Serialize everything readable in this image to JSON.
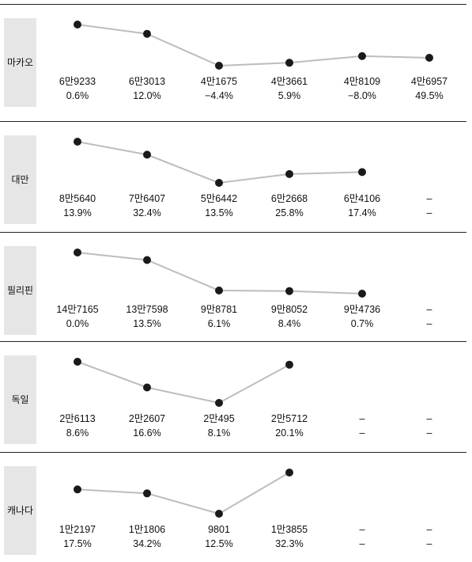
{
  "chart_data": [
    {
      "type": "line",
      "title": "마카오",
      "values": [
        69233,
        63013,
        41675,
        43661,
        48109,
        46957
      ],
      "value_labels": [
        "6만9233",
        "6만3013",
        "4만1675",
        "4만3661",
        "4만8109",
        "4만6957"
      ],
      "change_labels": [
        "0.6%",
        "12.0%",
        "−4.4%",
        "5.9%",
        "−8.0%",
        "49.5%"
      ]
    },
    {
      "type": "line",
      "title": "대만",
      "values": [
        85640,
        76407,
        56442,
        62668,
        64106,
        null
      ],
      "value_labels": [
        "8만5640",
        "7만6407",
        "5만6442",
        "6만2668",
        "6만4106",
        "–"
      ],
      "change_labels": [
        "13.9%",
        "32.4%",
        "13.5%",
        "25.8%",
        "17.4%",
        "–"
      ]
    },
    {
      "type": "line",
      "title": "필리핀",
      "values": [
        147165,
        137598,
        98781,
        98052,
        94736,
        null
      ],
      "value_labels": [
        "14만7165",
        "13만7598",
        "9만8781",
        "9만8052",
        "9만4736",
        "–"
      ],
      "change_labels": [
        "0.0%",
        "13.5%",
        "6.1%",
        "8.4%",
        "0.7%",
        "–"
      ]
    },
    {
      "type": "line",
      "title": "독일",
      "values": [
        26113,
        22607,
        20495,
        25712,
        null,
        null
      ],
      "value_labels": [
        "2만6113",
        "2만2607",
        "2만495",
        "2만5712",
        "–",
        "–"
      ],
      "change_labels": [
        "8.6%",
        "16.6%",
        "8.1%",
        "20.1%",
        "–",
        "–"
      ]
    },
    {
      "type": "line",
      "title": "캐나다",
      "values": [
        12197,
        11806,
        9801,
        13855,
        null,
        null
      ],
      "value_labels": [
        "1만2197",
        "1만1806",
        "9801",
        "1만3855",
        "–",
        "–"
      ],
      "change_labels": [
        "17.5%",
        "34.2%",
        "12.5%",
        "32.3%",
        "–",
        "–"
      ]
    }
  ]
}
